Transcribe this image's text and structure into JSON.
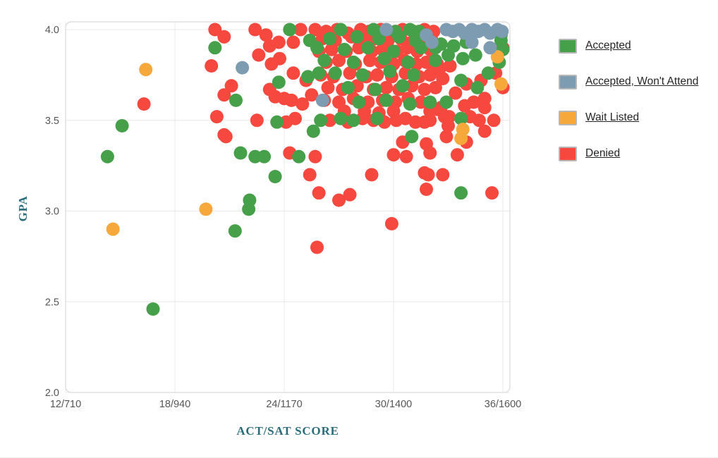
{
  "chart_data": {
    "type": "scatter",
    "title": "",
    "xlabel": "ACT/SAT SCORE",
    "ylabel": "GPA",
    "xlim": [
      12,
      36
    ],
    "ylim": [
      2.0,
      4.0
    ],
    "grid": true,
    "legend_position": "right",
    "marker_size": 19,
    "x_ticks": [
      {
        "value": 12,
        "label": "12/710"
      },
      {
        "value": 18,
        "label": "18/940"
      },
      {
        "value": 24,
        "label": "24/1170"
      },
      {
        "value": 30,
        "label": "30/1400"
      },
      {
        "value": 36,
        "label": "36/1600"
      }
    ],
    "y_ticks": [
      {
        "value": 4.0,
        "label": "4.0"
      },
      {
        "value": 3.5,
        "label": "3.5"
      },
      {
        "value": 3.0,
        "label": "3.0"
      },
      {
        "value": 2.5,
        "label": "2.5"
      },
      {
        "value": 2.0,
        "label": "2.0"
      }
    ],
    "series": [
      {
        "name": "Accepted",
        "color": "#46a04a",
        "points": [
          [
            15.1,
            3.47
          ],
          [
            14.3,
            3.3
          ],
          [
            16.8,
            2.46
          ],
          [
            21.3,
            2.89
          ],
          [
            22.1,
            3.06
          ],
          [
            22.05,
            3.01
          ],
          [
            20.2,
            3.9
          ],
          [
            21.35,
            3.61
          ],
          [
            21.6,
            3.32
          ],
          [
            22.4,
            3.3
          ],
          [
            22.9,
            3.3
          ],
          [
            24.8,
            3.3
          ],
          [
            23.5,
            3.19
          ],
          [
            24.3,
            4.0
          ],
          [
            25.4,
            3.94
          ],
          [
            25.3,
            3.74
          ],
          [
            25.9,
            3.76
          ],
          [
            23.7,
            3.71
          ],
          [
            23.6,
            3.49
          ],
          [
            25.6,
            3.44
          ],
          [
            31.0,
            3.41
          ],
          [
            33.7,
            3.1
          ],
          [
            26.0,
            3.5
          ],
          [
            27.1,
            3.51
          ],
          [
            27.8,
            3.5
          ],
          [
            29.1,
            3.51
          ],
          [
            32.0,
            3.6
          ],
          [
            32.9,
            3.6
          ],
          [
            33.7,
            3.51
          ],
          [
            26.5,
            3.95
          ],
          [
            28.0,
            3.96
          ],
          [
            29.2,
            3.95
          ],
          [
            30.3,
            3.96
          ],
          [
            31.2,
            3.94
          ],
          [
            25.8,
            3.9
          ],
          [
            27.3,
            3.89
          ],
          [
            28.6,
            3.9
          ],
          [
            30.0,
            3.88
          ],
          [
            31.5,
            3.9
          ],
          [
            32.3,
            3.9
          ],
          [
            26.2,
            3.83
          ],
          [
            27.8,
            3.82
          ],
          [
            29.5,
            3.84
          ],
          [
            30.8,
            3.82
          ],
          [
            32.3,
            3.83
          ],
          [
            26.8,
            3.76
          ],
          [
            28.3,
            3.75
          ],
          [
            29.8,
            3.77
          ],
          [
            31.1,
            3.75
          ],
          [
            27.5,
            3.68
          ],
          [
            29.0,
            3.67
          ],
          [
            30.5,
            3.69
          ],
          [
            33.7,
            3.72
          ],
          [
            34.6,
            3.68
          ],
          [
            28.1,
            3.6
          ],
          [
            29.6,
            3.61
          ],
          [
            30.9,
            3.59
          ],
          [
            27.1,
            4.0
          ],
          [
            28.9,
            4.0
          ],
          [
            30.1,
            3.99
          ],
          [
            30.9,
            4.0
          ],
          [
            31.4,
            3.99
          ],
          [
            35.9,
            3.97
          ],
          [
            35.8,
            3.82
          ],
          [
            35.2,
            3.76
          ],
          [
            36.0,
            3.89
          ],
          [
            35.9,
            3.94
          ],
          [
            32.6,
            3.92
          ],
          [
            33.3,
            3.91
          ],
          [
            34.0,
            3.93
          ],
          [
            33.0,
            3.86
          ],
          [
            33.8,
            3.84
          ],
          [
            34.5,
            3.86
          ]
        ]
      },
      {
        "name": "Accepted, Won't Attend",
        "color": "#7e9cb1",
        "points": [
          [
            21.7,
            3.79
          ],
          [
            26.1,
            3.61
          ],
          [
            29.6,
            4.0
          ],
          [
            31.8,
            3.97
          ],
          [
            32.1,
            3.93
          ],
          [
            34.3,
            3.93
          ],
          [
            35.3,
            3.9
          ],
          [
            32.9,
            4.0
          ],
          [
            33.25,
            3.99
          ],
          [
            33.6,
            4.0
          ],
          [
            33.9,
            3.98
          ],
          [
            34.3,
            4.0
          ],
          [
            34.65,
            3.99
          ],
          [
            35.0,
            4.0
          ],
          [
            35.3,
            3.98
          ],
          [
            35.7,
            4.0
          ],
          [
            35.95,
            3.99
          ]
        ]
      },
      {
        "name": "Wait Listed",
        "color": "#f7a83b",
        "points": [
          [
            16.4,
            3.78
          ],
          [
            14.6,
            2.9
          ],
          [
            19.7,
            3.01
          ],
          [
            33.8,
            3.45
          ],
          [
            33.7,
            3.4
          ],
          [
            35.7,
            3.85
          ],
          [
            35.9,
            3.7
          ]
        ]
      },
      {
        "name": "Denied",
        "color": "#f6483f",
        "points": [
          [
            16.3,
            3.59
          ],
          [
            20.2,
            4.0
          ],
          [
            20.7,
            3.96
          ],
          [
            20.0,
            3.8
          ],
          [
            21.1,
            3.69
          ],
          [
            20.7,
            3.64
          ],
          [
            20.3,
            3.52
          ],
          [
            20.7,
            3.42
          ],
          [
            20.8,
            3.41
          ],
          [
            22.5,
            3.5
          ],
          [
            24.1,
            3.49
          ],
          [
            24.6,
            3.51
          ],
          [
            22.4,
            4.0
          ],
          [
            23.0,
            3.97
          ],
          [
            23.2,
            3.91
          ],
          [
            23.7,
            3.93
          ],
          [
            24.5,
            3.93
          ],
          [
            24.9,
            4.0
          ],
          [
            25.7,
            4.0
          ],
          [
            22.6,
            3.86
          ],
          [
            23.3,
            3.81
          ],
          [
            23.75,
            3.84
          ],
          [
            24.5,
            3.76
          ],
          [
            25.2,
            3.72
          ],
          [
            23.2,
            3.67
          ],
          [
            23.5,
            3.63
          ],
          [
            24.0,
            3.62
          ],
          [
            24.4,
            3.61
          ],
          [
            25.0,
            3.59
          ],
          [
            25.5,
            3.64
          ],
          [
            24.3,
            3.32
          ],
          [
            25.4,
            3.2
          ],
          [
            25.7,
            3.3
          ],
          [
            25.9,
            3.1
          ],
          [
            27.6,
            3.09
          ],
          [
            27.0,
            3.06
          ],
          [
            25.8,
            2.8
          ],
          [
            29.9,
            2.93
          ],
          [
            28.8,
            3.2
          ],
          [
            31.7,
            3.21
          ],
          [
            26.5,
            3.5
          ],
          [
            27.5,
            3.49
          ],
          [
            28.3,
            3.51
          ],
          [
            28.9,
            3.5
          ],
          [
            29.5,
            3.49
          ],
          [
            30.15,
            3.5
          ],
          [
            30.65,
            3.51
          ],
          [
            31.2,
            3.49
          ],
          [
            32.0,
            3.5
          ],
          [
            34.7,
            3.5
          ],
          [
            30.5,
            3.38
          ],
          [
            31.8,
            3.37
          ],
          [
            32.0,
            3.32
          ],
          [
            30.0,
            3.31
          ],
          [
            30.7,
            3.3
          ],
          [
            32.9,
            3.41
          ],
          [
            34.0,
            3.38
          ],
          [
            33.0,
            3.47
          ],
          [
            33.5,
            3.31
          ],
          [
            31.9,
            3.2
          ],
          [
            32.7,
            3.2
          ],
          [
            31.8,
            3.12
          ],
          [
            35.4,
            3.1
          ],
          [
            26.3,
            3.99
          ],
          [
            26.9,
            4.0
          ],
          [
            27.5,
            3.98
          ],
          [
            28.2,
            4.0
          ],
          [
            28.65,
            3.99
          ],
          [
            29.3,
            4.0
          ],
          [
            29.9,
            3.98
          ],
          [
            30.5,
            4.0
          ],
          [
            31.1,
            3.99
          ],
          [
            31.7,
            4.0
          ],
          [
            32.2,
            3.99
          ],
          [
            26.1,
            3.95
          ],
          [
            26.8,
            3.94
          ],
          [
            27.7,
            3.96
          ],
          [
            28.4,
            3.94
          ],
          [
            29.0,
            3.95
          ],
          [
            29.7,
            3.94
          ],
          [
            30.4,
            3.95
          ],
          [
            31.0,
            3.93
          ],
          [
            31.6,
            3.95
          ],
          [
            32.1,
            3.94
          ],
          [
            25.9,
            3.88
          ],
          [
            26.6,
            3.89
          ],
          [
            27.4,
            3.88
          ],
          [
            28.1,
            3.9
          ],
          [
            28.8,
            3.88
          ],
          [
            29.4,
            3.89
          ],
          [
            30.2,
            3.88
          ],
          [
            30.75,
            3.9
          ],
          [
            31.3,
            3.88
          ],
          [
            32.0,
            3.89
          ],
          [
            26.3,
            3.82
          ],
          [
            27.0,
            3.83
          ],
          [
            27.9,
            3.81
          ],
          [
            28.7,
            3.83
          ],
          [
            29.3,
            3.82
          ],
          [
            30.0,
            3.81
          ],
          [
            30.6,
            3.83
          ],
          [
            31.25,
            3.81
          ],
          [
            31.8,
            3.82
          ],
          [
            32.4,
            3.81
          ],
          [
            26.0,
            3.75
          ],
          [
            26.7,
            3.74
          ],
          [
            27.6,
            3.76
          ],
          [
            28.5,
            3.74
          ],
          [
            29.1,
            3.75
          ],
          [
            29.9,
            3.74
          ],
          [
            30.65,
            3.76
          ],
          [
            31.4,
            3.74
          ],
          [
            32.0,
            3.75
          ],
          [
            26.4,
            3.68
          ],
          [
            27.2,
            3.67
          ],
          [
            28.0,
            3.69
          ],
          [
            28.9,
            3.67
          ],
          [
            29.6,
            3.68
          ],
          [
            30.3,
            3.67
          ],
          [
            31.0,
            3.69
          ],
          [
            31.7,
            3.67
          ],
          [
            32.3,
            3.68
          ],
          [
            26.2,
            3.61
          ],
          [
            27.0,
            3.6
          ],
          [
            27.8,
            3.62
          ],
          [
            28.6,
            3.6
          ],
          [
            29.4,
            3.61
          ],
          [
            30.1,
            3.6
          ],
          [
            30.8,
            3.62
          ],
          [
            31.5,
            3.6
          ],
          [
            27.3,
            3.55
          ],
          [
            28.4,
            3.55
          ],
          [
            29.2,
            3.54
          ],
          [
            30.0,
            3.55
          ],
          [
            32.0,
            3.82
          ],
          [
            32.5,
            3.78
          ],
          [
            33.1,
            3.8
          ],
          [
            32.7,
            3.73
          ],
          [
            33.4,
            3.65
          ],
          [
            34.0,
            3.7
          ],
          [
            34.8,
            3.72
          ],
          [
            35.6,
            3.76
          ],
          [
            33.9,
            3.58
          ],
          [
            35.0,
            3.62
          ],
          [
            32.4,
            3.56
          ],
          [
            33.05,
            3.52
          ],
          [
            34.2,
            3.52
          ],
          [
            35.5,
            3.5
          ],
          [
            35.0,
            3.44
          ],
          [
            36.0,
            3.9
          ],
          [
            36.0,
            3.68
          ],
          [
            32.6,
            3.57
          ],
          [
            34.4,
            3.6
          ],
          [
            35.0,
            3.57
          ],
          [
            32.0,
            3.55
          ],
          [
            32.8,
            3.52
          ],
          [
            31.7,
            3.49
          ]
        ]
      }
    ]
  },
  "legend": {
    "items": [
      "Accepted",
      "Accepted, Won't Attend",
      "Wait Listed",
      "Denied"
    ]
  },
  "style_colors": {
    "axis_title": "#2a6e7e",
    "tick_label": "#565656",
    "gridline": "#e8e8e8",
    "plot_border": "#dadada"
  }
}
